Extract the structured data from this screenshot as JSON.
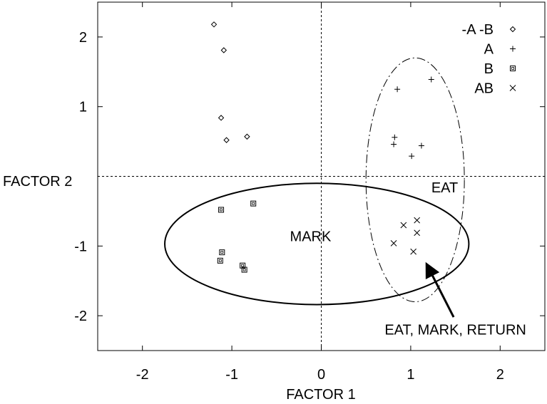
{
  "chart_data": {
    "type": "scatter",
    "title": "",
    "xlabel": "FACTOR 1",
    "ylabel": "FACTOR 2",
    "xlim": [
      -2.5,
      2.5
    ],
    "ylim": [
      -2.5,
      2.5
    ],
    "xticks": [
      -2,
      -1,
      0,
      1,
      2
    ],
    "yticks": [
      -2,
      -1,
      1,
      2
    ],
    "xtick_labels": [
      "-2",
      "-1",
      "0",
      "1",
      "2"
    ],
    "ytick_labels": [
      "-2",
      "-1",
      "1",
      "2"
    ],
    "grid": false,
    "zero_lines": true,
    "legend_position": "top-right",
    "series": [
      {
        "name": "-A -B",
        "marker": "diamond",
        "points": [
          {
            "x": -1.2,
            "y": 2.18
          },
          {
            "x": -1.09,
            "y": 1.81
          },
          {
            "x": -1.12,
            "y": 0.84
          },
          {
            "x": -1.06,
            "y": 0.52
          },
          {
            "x": -0.83,
            "y": 0.57
          }
        ]
      },
      {
        "name": "A",
        "marker": "plus",
        "points": [
          {
            "x": 0.85,
            "y": 1.25
          },
          {
            "x": 1.23,
            "y": 1.39
          },
          {
            "x": 0.82,
            "y": 0.56
          },
          {
            "x": 0.81,
            "y": 0.46
          },
          {
            "x": 1.12,
            "y": 0.44
          },
          {
            "x": 1.01,
            "y": 0.29
          }
        ]
      },
      {
        "name": "B",
        "marker": "square",
        "points": [
          {
            "x": -1.12,
            "y": -0.48
          },
          {
            "x": -0.76,
            "y": -0.39
          },
          {
            "x": -1.11,
            "y": -1.09
          },
          {
            "x": -1.13,
            "y": -1.21
          },
          {
            "x": -0.88,
            "y": -1.28
          },
          {
            "x": -0.86,
            "y": -1.34
          }
        ]
      },
      {
        "name": "AB",
        "marker": "x",
        "points": [
          {
            "x": 0.92,
            "y": -0.7
          },
          {
            "x": 1.07,
            "y": -0.63
          },
          {
            "x": 1.07,
            "y": -0.81
          },
          {
            "x": 0.81,
            "y": -0.96
          },
          {
            "x": 1.03,
            "y": -1.08
          }
        ]
      }
    ],
    "regions": [
      {
        "label": "MARK",
        "cx": -0.05,
        "cy": -0.97,
        "rx": 1.7,
        "ry": 0.87,
        "style": "solid",
        "label_x": -0.12,
        "label_y": -0.86
      },
      {
        "label": "EAT",
        "cx": 1.05,
        "cy": -0.05,
        "rx": 0.55,
        "ry": 1.75,
        "style": "dashdot",
        "label_x": 1.38,
        "label_y": -0.16
      }
    ],
    "annotations": [
      {
        "text": "EAT, MARK, RETURN",
        "text_x": 1.5,
        "text_y": -2.2,
        "arrow_from_x": 1.48,
        "arrow_from_y": -2.02,
        "arrow_to_x": 1.17,
        "arrow_to_y": -1.24
      }
    ]
  }
}
